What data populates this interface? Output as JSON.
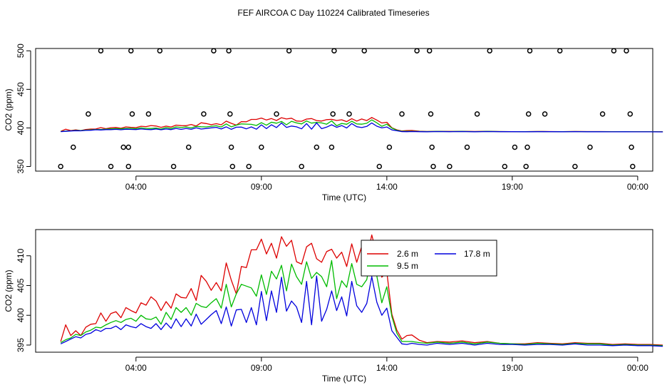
{
  "page": {
    "title": "FEF AIRCOA C  Day 110224  Calibrated Timeseries"
  },
  "chart_data": [
    {
      "type": "scatter+line",
      "xlabel": "Time (UTC)",
      "ylabel": "CO2 (ppm)",
      "xlim": [
        0,
        24.6
      ],
      "ylim": [
        344,
        503
      ],
      "x_ticks": [
        {
          "v": 4,
          "label": "04:00"
        },
        {
          "v": 9,
          "label": "09:00"
        },
        {
          "v": 14,
          "label": "14:00"
        },
        {
          "v": 19,
          "label": "19:00"
        },
        {
          "v": 24,
          "label": "00:00"
        }
      ],
      "y_ticks": [
        {
          "v": 350,
          "label": "350"
        },
        {
          "v": 400,
          "label": "400"
        },
        {
          "v": 450,
          "label": "450"
        },
        {
          "v": 500,
          "label": "500"
        }
      ],
      "points": [
        [
          1.0,
          350
        ],
        [
          1.5,
          375
        ],
        [
          2.1,
          418
        ],
        [
          2.6,
          500
        ],
        [
          3.0,
          350
        ],
        [
          3.5,
          375
        ],
        [
          3.8,
          500
        ],
        [
          3.7,
          375
        ],
        [
          3.7,
          350
        ],
        [
          3.85,
          418
        ],
        [
          4.5,
          418
        ],
        [
          4.95,
          500
        ],
        [
          5.5,
          350
        ],
        [
          6.1,
          375
        ],
        [
          6.7,
          418
        ],
        [
          7.1,
          500
        ],
        [
          7.7,
          500
        ],
        [
          7.75,
          418
        ],
        [
          7.8,
          375
        ],
        [
          7.85,
          350
        ],
        [
          8.5,
          350
        ],
        [
          9.0,
          375
        ],
        [
          9.6,
          418
        ],
        [
          10.1,
          500
        ],
        [
          10.6,
          350
        ],
        [
          11.2,
          375
        ],
        [
          11.8,
          375
        ],
        [
          11.85,
          418
        ],
        [
          11.9,
          500
        ],
        [
          12.5,
          418
        ],
        [
          13.1,
          500
        ],
        [
          13.7,
          350
        ],
        [
          14.1,
          375
        ],
        [
          14.6,
          418
        ],
        [
          15.2,
          500
        ],
        [
          15.7,
          500
        ],
        [
          15.75,
          418
        ],
        [
          15.8,
          375
        ],
        [
          15.85,
          350
        ],
        [
          16.5,
          350
        ],
        [
          17.2,
          375
        ],
        [
          17.6,
          418
        ],
        [
          18.1,
          500
        ],
        [
          18.7,
          350
        ],
        [
          19.1,
          375
        ],
        [
          19.6,
          375
        ],
        [
          19.65,
          418
        ],
        [
          19.7,
          500
        ],
        [
          19.55,
          350
        ],
        [
          20.3,
          418
        ],
        [
          20.9,
          500
        ],
        [
          21.5,
          350
        ],
        [
          22.1,
          375
        ],
        [
          22.6,
          418
        ],
        [
          23.05,
          500
        ],
        [
          23.55,
          500
        ],
        [
          23.7,
          418
        ],
        [
          23.75,
          375
        ],
        [
          23.8,
          350
        ]
      ],
      "series_source": "same three series as panel 2 (2.6 m red, 9.5 m green, 17.8 m blue)"
    },
    {
      "type": "line",
      "xlabel": "Time (UTC)",
      "ylabel": "CO2 (ppm)",
      "xlim": [
        0,
        24.6
      ],
      "ylim": [
        393.8,
        414.4
      ],
      "x_ticks": [
        {
          "v": 4,
          "label": "04:00"
        },
        {
          "v": 9,
          "label": "09:00"
        },
        {
          "v": 14,
          "label": "14:00"
        },
        {
          "v": 19,
          "label": "19:00"
        },
        {
          "v": 24,
          "label": "00:00"
        }
      ],
      "y_ticks": [
        {
          "v": 395,
          "label": "395"
        },
        {
          "v": 400,
          "label": "400"
        },
        {
          "v": 405,
          "label": "405"
        },
        {
          "v": 410,
          "label": "410"
        }
      ],
      "legend": {
        "position": "top-center"
      },
      "series": [
        {
          "name": "2.6 m",
          "color": "#DD0000",
          "x": [
            0.0,
            0.2,
            0.4,
            0.6,
            0.8,
            1.0,
            1.2,
            1.4,
            1.6,
            1.8,
            2.0,
            2.2,
            2.4,
            2.6,
            2.8,
            3.0,
            3.2,
            3.4,
            3.6,
            3.8,
            4.0,
            4.2,
            4.4,
            4.6,
            4.8,
            5.0,
            5.2,
            5.4,
            5.6,
            5.8,
            6.0,
            6.2,
            6.4,
            6.6,
            6.8,
            7.0,
            7.2,
            7.4,
            7.6,
            7.8,
            8.0,
            8.2,
            8.4,
            8.6,
            8.8,
            9.0,
            9.2,
            9.4,
            9.6,
            9.8,
            10.0,
            10.2,
            10.4,
            10.6,
            10.8,
            11.0,
            11.2,
            11.4,
            11.6,
            11.8,
            12.0,
            12.2,
            12.4,
            12.6,
            12.8,
            13.0,
            13.2,
            13.4,
            13.6,
            13.8,
            14.0,
            14.3,
            14.6,
            15.0,
            15.5,
            16.0,
            16.5,
            17.0,
            17.5,
            18.0,
            18.5,
            19.0,
            19.5,
            20.0,
            20.5,
            21.0,
            21.5,
            22.0,
            22.5,
            23.0,
            23.5,
            24.0
          ],
          "values": [
            395.6,
            398.4,
            396.6,
            397.4,
            396.6,
            398.0,
            398.5,
            398.6,
            400.4,
            399.0,
            400.3,
            400.6,
            399.6,
            401.3,
            400.8,
            400.4,
            402.1,
            401.7,
            403.1,
            402.4,
            400.8,
            402.3,
            401.2,
            403.6,
            403.0,
            402.9,
            404.5,
            402.5,
            406.7,
            405.7,
            404.2,
            405.5,
            404.1,
            408.8,
            405.9,
            403.6,
            408.2,
            408.0,
            411.0,
            411.0,
            412.8,
            410.3,
            412.1,
            409.6,
            413.2,
            411.6,
            412.6,
            409.0,
            408.6,
            411.5,
            412.1,
            409.5,
            408.9,
            410.7,
            411.1,
            409.6,
            410.6,
            408.2,
            412.0,
            408.9,
            411.6,
            409.5,
            413.5,
            410.2,
            406.4,
            407.3,
            400.2,
            397.5,
            396.0,
            396.6,
            396.7,
            395.8,
            395.4,
            395.6,
            395.5,
            395.7,
            395.4,
            395.6,
            395.3,
            395.2,
            395.2,
            395.4,
            395.3,
            395.2,
            395.4,
            395.3,
            395.3,
            395.1,
            395.2,
            395.1,
            395.1,
            395.0
          ]
        },
        {
          "name": "9.5 m",
          "color": "#00BB00",
          "x": [
            0.0,
            0.2,
            0.4,
            0.6,
            0.8,
            1.0,
            1.2,
            1.4,
            1.6,
            1.8,
            2.0,
            2.2,
            2.4,
            2.6,
            2.8,
            3.0,
            3.2,
            3.4,
            3.6,
            3.8,
            4.0,
            4.2,
            4.4,
            4.6,
            4.8,
            5.0,
            5.2,
            5.4,
            5.6,
            5.8,
            6.0,
            6.2,
            6.4,
            6.6,
            6.8,
            7.0,
            7.2,
            7.4,
            7.6,
            7.8,
            8.0,
            8.2,
            8.4,
            8.6,
            8.8,
            9.0,
            9.2,
            9.4,
            9.6,
            9.8,
            10.0,
            10.2,
            10.4,
            10.6,
            10.8,
            11.0,
            11.2,
            11.4,
            11.6,
            11.8,
            12.0,
            12.2,
            12.4,
            12.6,
            12.8,
            13.0,
            13.2,
            13.4,
            13.6,
            13.8,
            14.0,
            14.3,
            14.6,
            15.0,
            15.5,
            16.0,
            16.5,
            17.0,
            17.5,
            18.0,
            18.5,
            19.0,
            19.5,
            20.0,
            20.5,
            21.0,
            21.5,
            22.0,
            22.5,
            23.0,
            23.5,
            24.0
          ],
          "values": [
            395.4,
            395.9,
            396.2,
            396.8,
            396.6,
            397.2,
            397.5,
            398.0,
            397.9,
            398.4,
            398.8,
            399.1,
            398.8,
            399.3,
            399.5,
            399.0,
            400.0,
            399.4,
            399.3,
            399.7,
            398.5,
            400.5,
            399.3,
            401.3,
            400.5,
            401.3,
            400.0,
            402.0,
            401.5,
            401.3,
            402.1,
            402.8,
            401.2,
            405.2,
            401.4,
            403.6,
            405.2,
            404.9,
            404.6,
            403.2,
            406.8,
            403.5,
            407.4,
            406.1,
            408.4,
            404.1,
            408.6,
            406.5,
            405.2,
            409.0,
            406.2,
            407.2,
            406.5,
            404.8,
            409.2,
            402.8,
            405.8,
            404.7,
            408.7,
            405.2,
            404.8,
            406.0,
            410.5,
            406.6,
            402.1,
            404.8,
            399.8,
            397.0,
            395.6,
            395.6,
            395.6,
            395.4,
            395.3,
            395.5,
            395.3,
            395.5,
            395.2,
            395.5,
            395.3,
            395.2,
            395.1,
            395.3,
            395.2,
            395.1,
            395.3,
            395.2,
            395.2,
            395.0,
            395.1,
            395.0,
            395.0,
            394.9
          ]
        },
        {
          "name": "17.8 m",
          "color": "#0000DD",
          "x": [
            0.0,
            0.2,
            0.4,
            0.6,
            0.8,
            1.0,
            1.2,
            1.4,
            1.6,
            1.8,
            2.0,
            2.2,
            2.4,
            2.6,
            2.8,
            3.0,
            3.2,
            3.4,
            3.6,
            3.8,
            4.0,
            4.2,
            4.4,
            4.6,
            4.8,
            5.0,
            5.2,
            5.4,
            5.6,
            5.8,
            6.0,
            6.2,
            6.4,
            6.6,
            6.8,
            7.0,
            7.2,
            7.4,
            7.6,
            7.8,
            8.0,
            8.2,
            8.4,
            8.6,
            8.8,
            9.0,
            9.2,
            9.4,
            9.6,
            9.8,
            10.0,
            10.2,
            10.4,
            10.6,
            10.8,
            11.0,
            11.2,
            11.4,
            11.6,
            11.8,
            12.0,
            12.2,
            12.4,
            12.6,
            12.8,
            13.0,
            13.2,
            13.4,
            13.6,
            13.8,
            14.0,
            14.3,
            14.6,
            15.0,
            15.5,
            16.0,
            16.5,
            17.0,
            17.5,
            18.0,
            18.5,
            19.0,
            19.5,
            20.0,
            20.5,
            21.0,
            21.5,
            22.0,
            22.5,
            23.0,
            23.5,
            24.0
          ],
          "values": [
            395.2,
            395.6,
            396.0,
            396.4,
            396.2,
            396.8,
            397.0,
            397.6,
            397.3,
            397.8,
            397.8,
            398.2,
            397.6,
            398.4,
            398.1,
            397.9,
            398.6,
            398.1,
            397.8,
            398.6,
            397.6,
            398.7,
            397.8,
            399.4,
            398.1,
            399.4,
            398.2,
            400.2,
            398.5,
            399.3,
            400.1,
            400.8,
            398.6,
            401.4,
            398.2,
            400.9,
            401.0,
            398.8,
            401.3,
            398.4,
            404.0,
            399.1,
            404.1,
            400.5,
            406.4,
            400.7,
            402.4,
            401.4,
            398.8,
            405.7,
            398.4,
            406.6,
            399.0,
            401.0,
            404.1,
            400.8,
            403.1,
            399.9,
            405.7,
            401.6,
            400.5,
            402.0,
            406.5,
            402.2,
            400.0,
            401.2,
            397.4,
            396.3,
            395.2,
            395.1,
            395.3,
            395.1,
            395.0,
            395.3,
            395.1,
            395.3,
            395.0,
            395.3,
            395.1,
            395.1,
            395.0,
            395.1,
            395.1,
            395.0,
            395.2,
            395.0,
            395.0,
            394.9,
            395.0,
            394.9,
            394.9,
            394.8
          ]
        }
      ]
    }
  ]
}
